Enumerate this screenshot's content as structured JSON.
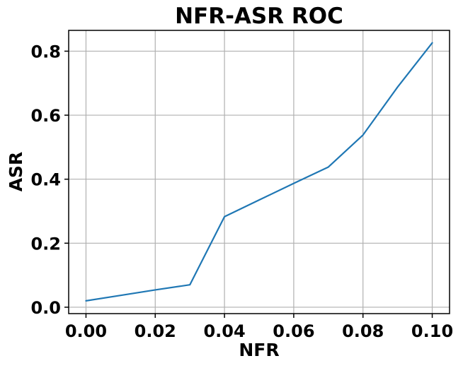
{
  "chart_data": {
    "type": "line",
    "title": "NFR-ASR ROC",
    "xlabel": "NFR",
    "ylabel": "ASR",
    "xlim": [
      -0.005,
      0.105
    ],
    "ylim": [
      -0.02,
      0.865
    ],
    "xticks": [
      0.0,
      0.02,
      0.04,
      0.06,
      0.08,
      0.1
    ],
    "xtick_labels": [
      "0.00",
      "0.02",
      "0.04",
      "0.06",
      "0.08",
      "0.10"
    ],
    "yticks": [
      0.0,
      0.2,
      0.4,
      0.6,
      0.8
    ],
    "ytick_labels": [
      "0.0",
      "0.2",
      "0.4",
      "0.6",
      "0.8"
    ],
    "grid": true,
    "series": [
      {
        "color": "#1f77b4",
        "x": [
          0.0,
          0.01,
          0.02,
          0.03,
          0.04,
          0.05,
          0.06,
          0.07,
          0.08,
          0.09,
          0.1
        ],
        "y": [
          0.02,
          0.037,
          0.054,
          0.07,
          0.283,
          0.335,
          0.387,
          0.438,
          0.538,
          0.688,
          0.826
        ]
      }
    ]
  }
}
